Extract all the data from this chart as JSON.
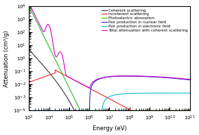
{
  "xlabel": "Energy (eV)",
  "ylabel": "Attenuation (cm²/g)",
  "xlim": [
    1000.0,
    100000000000.0
  ],
  "ylim": [
    0.0001,
    10000.0
  ],
  "legend_entries": [
    "Coherent scattering",
    "Incoherent scattering",
    "Photoelectric absorption",
    "Pair production in nuclear field",
    "Pair production in electronic field",
    "Total attenuation with coherent scattering"
  ],
  "line_colors": [
    "#333333",
    "#ee2222",
    "#22bb22",
    "#2222cc",
    "#00bbcc",
    "#cc00cc"
  ],
  "lw": 0.8,
  "legend_fontsize": 4.0,
  "axis_fontsize": 6,
  "tick_fontsize": 5
}
